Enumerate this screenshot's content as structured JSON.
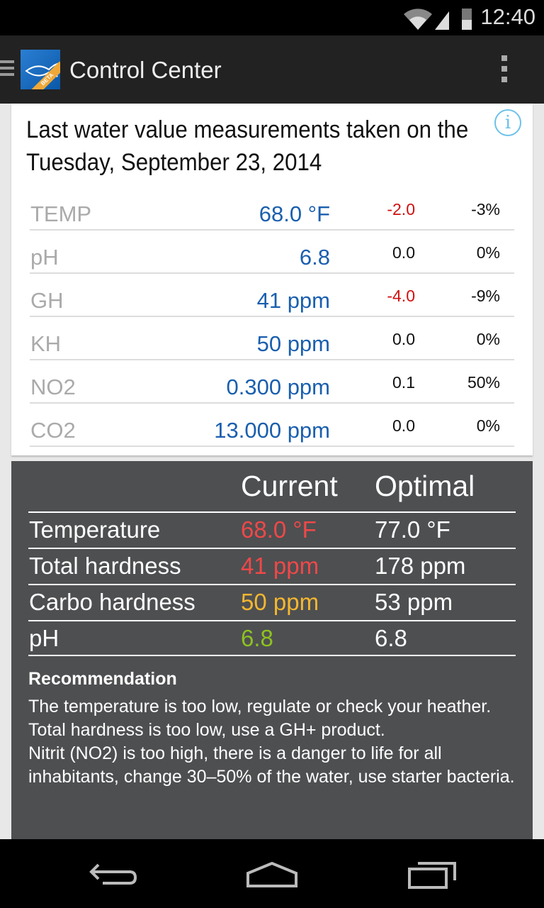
{
  "status_bar": {
    "time": "12:40",
    "icons": [
      "wifi-icon",
      "signal-icon",
      "battery-icon"
    ]
  },
  "app_bar": {
    "title": "Control Center",
    "logo_badge": "BETA"
  },
  "measurements": {
    "heading": "Last water value measurements taken on the Tuesday, September 23, 2014",
    "rows": [
      {
        "label": "TEMP",
        "value": "68.0 °F",
        "diff": "-2.0",
        "pct": "-3%",
        "diff_negative": true
      },
      {
        "label": "pH",
        "value": "6.8",
        "diff": "0.0",
        "pct": "0%",
        "diff_negative": false
      },
      {
        "label": "GH",
        "value": "41 ppm",
        "diff": "-4.0",
        "pct": "-9%",
        "diff_negative": true
      },
      {
        "label": "KH",
        "value": "50 ppm",
        "diff": "0.0",
        "pct": "0%",
        "diff_negative": false
      },
      {
        "label": "NO2",
        "value": "0.300 ppm",
        "diff": "0.1",
        "pct": "50%",
        "diff_negative": false
      },
      {
        "label": "CO2",
        "value": "13.000 ppm",
        "diff": "0.0",
        "pct": "0%",
        "diff_negative": false
      }
    ]
  },
  "comparison": {
    "col_current": "Current",
    "col_optimal": "Optimal",
    "rows": [
      {
        "label": "Temperature",
        "current": "68.0 °F",
        "optimal": "77.0 °F",
        "color": "#f04848"
      },
      {
        "label": "Total hardness",
        "current": "41 ppm",
        "optimal": "178 ppm",
        "color": "#f04848"
      },
      {
        "label": "Carbo hardness",
        "current": "50 ppm",
        "optimal": "53 ppm",
        "color": "#f5b730"
      },
      {
        "label": "pH",
        "current": "6.8",
        "optimal": "6.8",
        "color": "#8dc21f"
      }
    ],
    "recommendation_title": "Recommendation",
    "recommendation_lines": [
      "The temperature is too low, regulate or check your heather.",
      "Total hardness is too low, use a GH+ product.",
      "Nitrit (NO2) is too high, there is a danger to life for all inhabitants, change 30–50% of the water, use starter bacteria."
    ]
  },
  "colors": {
    "value_blue": "#1a5fae",
    "negative_red": "#d01010",
    "panel": "#4e4f51"
  }
}
